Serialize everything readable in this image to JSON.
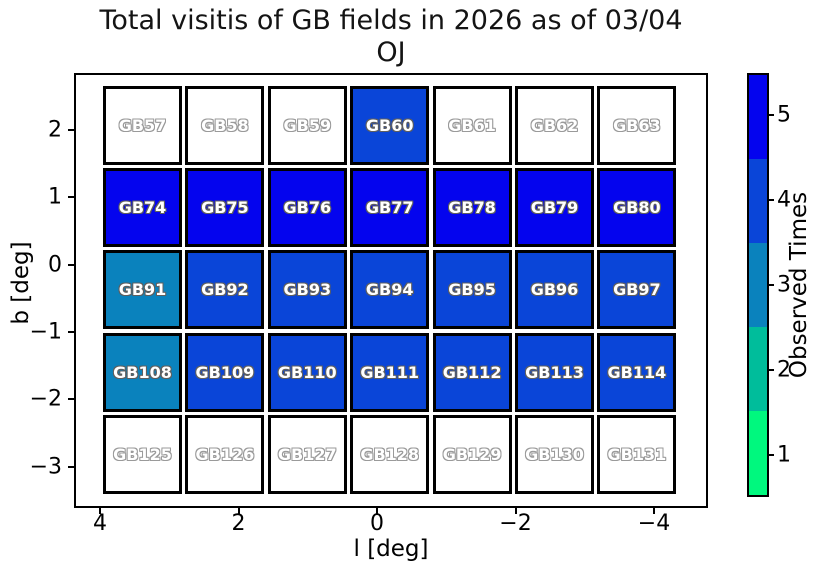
{
  "chart_data": {
    "type": "heatmap",
    "title": "Total visitis of GB fields in 2026 as of 03/04",
    "subtitle": "OJ",
    "xlabel": "l [deg]",
    "ylabel": "b [deg]",
    "x_ticks": [
      "4",
      "2",
      "0",
      "−2",
      "−4"
    ],
    "y_ticks": [
      "2",
      "1",
      "0",
      "−1",
      "−2",
      "−3"
    ],
    "x_axis_inverted": true,
    "xlim_approx": [
      4.6,
      -4.6
    ],
    "ylim_approx": [
      2.9,
      -3.6
    ],
    "l_centers_approx": [
      3.4,
      2.2,
      1.0,
      -0.2,
      -1.4,
      -2.6,
      -3.8
    ],
    "b_centers_approx": [
      2.0,
      0.8,
      -0.4,
      -1.6,
      -2.8
    ],
    "colorbar": {
      "label": "Observed Times",
      "ticks_top_to_bottom": [
        "5",
        "4",
        "3",
        "2",
        "1"
      ],
      "colors_by_value": {
        "1": "#00f87e",
        "2": "#00bd9b",
        "3": "#0a82bd",
        "4": "#0a45d8",
        "5": "#0404ee"
      },
      "unobserved_color": "#ffffff"
    },
    "rows": [
      {
        "b_center": 2.0,
        "cells": [
          {
            "label": "GB57",
            "value": 0
          },
          {
            "label": "GB58",
            "value": 0
          },
          {
            "label": "GB59",
            "value": 0
          },
          {
            "label": "GB60",
            "value": 4
          },
          {
            "label": "GB61",
            "value": 0
          },
          {
            "label": "GB62",
            "value": 0
          },
          {
            "label": "GB63",
            "value": 0
          }
        ]
      },
      {
        "b_center": 0.8,
        "cells": [
          {
            "label": "GB74",
            "value": 5
          },
          {
            "label": "GB75",
            "value": 5
          },
          {
            "label": "GB76",
            "value": 5
          },
          {
            "label": "GB77",
            "value": 5
          },
          {
            "label": "GB78",
            "value": 5
          },
          {
            "label": "GB79",
            "value": 5
          },
          {
            "label": "GB80",
            "value": 5
          }
        ]
      },
      {
        "b_center": -0.4,
        "cells": [
          {
            "label": "GB91",
            "value": 3
          },
          {
            "label": "GB92",
            "value": 4
          },
          {
            "label": "GB93",
            "value": 4
          },
          {
            "label": "GB94",
            "value": 4
          },
          {
            "label": "GB95",
            "value": 4
          },
          {
            "label": "GB96",
            "value": 4
          },
          {
            "label": "GB97",
            "value": 4
          }
        ]
      },
      {
        "b_center": -1.6,
        "cells": [
          {
            "label": "GB108",
            "value": 3
          },
          {
            "label": "GB109",
            "value": 4
          },
          {
            "label": "GB110",
            "value": 4
          },
          {
            "label": "GB111",
            "value": 4
          },
          {
            "label": "GB112",
            "value": 4
          },
          {
            "label": "GB113",
            "value": 4
          },
          {
            "label": "GB114",
            "value": 4
          }
        ]
      },
      {
        "b_center": -2.8,
        "cells": [
          {
            "label": "GB125",
            "value": 0
          },
          {
            "label": "GB126",
            "value": 0
          },
          {
            "label": "GB127",
            "value": 0
          },
          {
            "label": "GB128",
            "value": 0
          },
          {
            "label": "GB129",
            "value": 0
          },
          {
            "label": "GB130",
            "value": 0
          },
          {
            "label": "GB131",
            "value": 0
          }
        ]
      }
    ]
  }
}
